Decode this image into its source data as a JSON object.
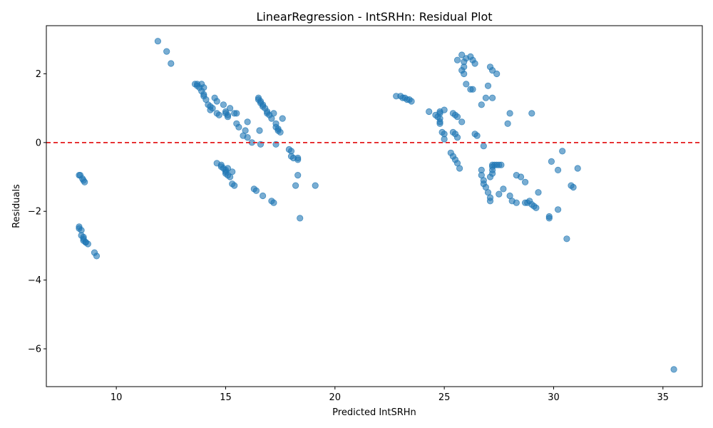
{
  "chart_data": {
    "type": "scatter",
    "title": "LinearRegression - IntSRHn: Residual Plot",
    "xlabel": "Predicted IntSRHn",
    "ylabel": "Residuals",
    "xlim": [
      6.8,
      36.8
    ],
    "ylim": [
      -7.1,
      3.4
    ],
    "xticks": [
      10,
      15,
      20,
      25,
      30,
      35
    ],
    "yticks": [
      -6,
      -4,
      -2,
      0,
      2
    ],
    "grid": false,
    "point_color": "#1f77b4",
    "reference_line": {
      "y": 0,
      "color": "#e41a1c",
      "style": "dashed"
    },
    "x": [
      11.9,
      12.3,
      12.5,
      8.3,
      8.3,
      8.4,
      8.4,
      8.5,
      8.5,
      8.5,
      8.6,
      8.6,
      8.7,
      9.0,
      9.1,
      8.3,
      8.35,
      8.45,
      8.5,
      8.55,
      13.6,
      13.7,
      13.7,
      13.8,
      13.9,
      13.9,
      14.0,
      14.0,
      14.0,
      14.1,
      14.2,
      14.3,
      14.3,
      14.4,
      14.5,
      14.6,
      14.6,
      14.7,
      14.9,
      15.0,
      15.0,
      15.1,
      15.1,
      15.2,
      15.4,
      15.5,
      15.5,
      15.6,
      15.8,
      15.9,
      16.0,
      16.0,
      16.2,
      16.5,
      16.5,
      16.6,
      16.6,
      16.7,
      16.7,
      16.8,
      16.9,
      16.9,
      17.0,
      17.1,
      17.2,
      17.3,
      17.3,
      17.4,
      17.4,
      17.5,
      17.6,
      17.9,
      18.0,
      18.1,
      18.0,
      18.3,
      18.3,
      18.3,
      18.2,
      18.4,
      19.1,
      16.3,
      16.4,
      16.7,
      17.1,
      17.2,
      14.6,
      14.8,
      14.8,
      14.9,
      15.0,
      15.0,
      15.0,
      15.1,
      15.2,
      15.3,
      15.3,
      15.4,
      15.1,
      16.55,
      16.6,
      17.3,
      22.8,
      23.0,
      23.1,
      23.2,
      23.3,
      23.4,
      23.5,
      24.3,
      24.6,
      24.7,
      24.8,
      24.8,
      24.8,
      24.9,
      25.0,
      25.0,
      25.0,
      24.8,
      24.8,
      25.6,
      25.8,
      25.9,
      25.9,
      25.8,
      25.9,
      26.0,
      26.2,
      26.3,
      26.4,
      26.2,
      26.3,
      26.0,
      26.7,
      27.0,
      27.1,
      27.2,
      27.4,
      26.9,
      27.2,
      25.4,
      25.5,
      25.6,
      25.8,
      25.4,
      25.5,
      25.6,
      26.4,
      26.5,
      26.8,
      25.3,
      25.4,
      25.5,
      25.6,
      25.7,
      26.7,
      26.7,
      26.8,
      26.8,
      26.9,
      27.0,
      27.1,
      27.1,
      27.2,
      27.2,
      27.2,
      27.2,
      27.3,
      27.4,
      27.5,
      27.6,
      27.1,
      27.5,
      27.7,
      28.0,
      28.1,
      28.3,
      28.3,
      28.5,
      28.7,
      28.7,
      28.8,
      28.9,
      29.0,
      29.1,
      29.2,
      29.3,
      27.9,
      28.0,
      29.0,
      29.8,
      29.8,
      30.2,
      30.2,
      30.4,
      30.6,
      30.8,
      30.9,
      31.1,
      29.9,
      35.5
    ],
    "y": [
      2.95,
      2.65,
      2.3,
      -2.45,
      -2.5,
      -2.55,
      -2.7,
      -2.75,
      -2.8,
      -2.85,
      -2.9,
      -2.9,
      -2.95,
      -3.2,
      -3.3,
      -0.95,
      -0.95,
      -1.05,
      -1.1,
      -1.15,
      1.7,
      1.7,
      1.65,
      1.6,
      1.5,
      1.7,
      1.4,
      1.6,
      1.35,
      1.25,
      1.1,
      1.05,
      0.95,
      1.0,
      1.3,
      1.2,
      0.85,
      0.8,
      1.1,
      0.9,
      0.85,
      0.75,
      0.8,
      1.0,
      0.85,
      0.85,
      0.55,
      0.45,
      0.2,
      0.35,
      0.15,
      0.6,
      0.0,
      1.3,
      1.25,
      1.2,
      1.15,
      1.1,
      1.05,
      1.0,
      0.9,
      0.85,
      0.8,
      0.7,
      0.85,
      0.55,
      0.45,
      0.4,
      0.35,
      0.3,
      0.7,
      -0.2,
      -0.4,
      -0.45,
      -0.25,
      -0.5,
      -0.45,
      -0.95,
      -1.25,
      -2.2,
      -1.25,
      -1.35,
      -1.4,
      -1.55,
      -1.7,
      -1.75,
      -0.6,
      -0.65,
      -0.7,
      -0.75,
      -0.8,
      -0.85,
      -0.9,
      -0.95,
      -1.0,
      -0.85,
      -1.2,
      -1.25,
      -0.75,
      0.35,
      -0.05,
      -0.05,
      1.35,
      1.35,
      1.3,
      1.3,
      1.25,
      1.25,
      1.2,
      0.9,
      0.8,
      0.75,
      0.7,
      0.6,
      0.55,
      0.3,
      0.25,
      0.1,
      0.95,
      0.9,
      0.85,
      2.4,
      2.55,
      2.35,
      2.2,
      2.1,
      2.0,
      2.45,
      2.5,
      2.4,
      2.3,
      1.55,
      1.55,
      1.7,
      1.1,
      1.65,
      2.2,
      2.1,
      2.0,
      1.3,
      1.3,
      0.85,
      0.8,
      0.75,
      0.6,
      0.3,
      0.25,
      0.15,
      0.25,
      0.2,
      -0.1,
      -0.3,
      -0.4,
      -0.5,
      -0.6,
      -0.75,
      -0.8,
      -0.95,
      -1.1,
      -1.2,
      -1.3,
      -1.45,
      -1.6,
      -1.7,
      -0.65,
      -0.7,
      -0.8,
      -0.9,
      -0.65,
      -0.65,
      -0.65,
      -0.65,
      -1.0,
      -1.5,
      -1.35,
      -1.55,
      -1.7,
      -0.95,
      -1.75,
      -1.0,
      -1.15,
      -1.75,
      -1.75,
      -1.7,
      -1.8,
      -1.85,
      -1.9,
      -1.45,
      0.55,
      0.85,
      0.85,
      -2.15,
      -2.2,
      -0.8,
      -1.95,
      -0.25,
      -2.8,
      -1.25,
      -1.3,
      -0.75,
      -0.55,
      -6.6
    ]
  }
}
